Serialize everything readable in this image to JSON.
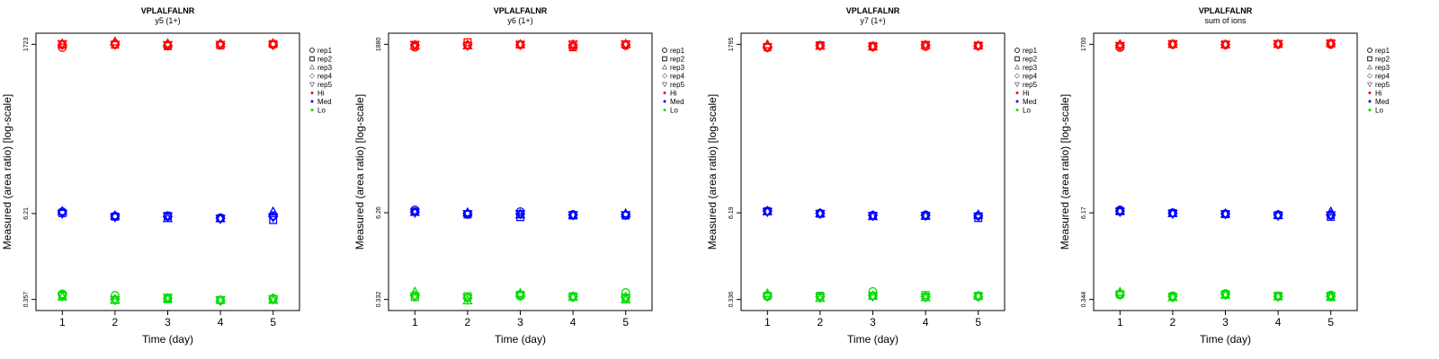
{
  "colors": {
    "Hi": "#ff0000",
    "Med": "#0000ff",
    "Lo": "#00dd00"
  },
  "legend": {
    "reps": [
      {
        "label": "rep1",
        "shape": "circle"
      },
      {
        "label": "rep2",
        "shape": "square"
      },
      {
        "label": "rep3",
        "shape": "triangle-up"
      },
      {
        "label": "rep4",
        "shape": "diamond"
      },
      {
        "label": "rep5",
        "shape": "triangle-down"
      }
    ],
    "levels": [
      "Hi",
      "Med",
      "Lo"
    ]
  },
  "chart_data": [
    {
      "type": "scatter",
      "title": "VPLALFALNR",
      "subtitle": "y5 (1+)",
      "xlabel": "Time (day)",
      "ylabel": "Measured (area ratio) [log-scale]",
      "x": [
        1,
        2,
        3,
        4,
        5
      ],
      "yticks": [
        0.357,
        6.21,
        1723
      ],
      "yticklabels": [
        "0.357",
        "6.21",
        "1723"
      ],
      "scale": "log",
      "series": [
        {
          "level": "Hi",
          "rep": "rep1",
          "values": [
            1540,
            1760,
            1650,
            1720,
            1700
          ]
        },
        {
          "level": "Hi",
          "rep": "rep2",
          "values": [
            1700,
            1700,
            1620,
            1660,
            1740
          ]
        },
        {
          "level": "Hi",
          "rep": "rep3",
          "values": [
            1760,
            1880,
            1770,
            1760,
            1780
          ]
        },
        {
          "level": "Hi",
          "rep": "rep4",
          "values": [
            1680,
            1720,
            1660,
            1740,
            1700
          ]
        },
        {
          "level": "Hi",
          "rep": "rep5",
          "values": [
            1740,
            1700,
            1690,
            1700,
            1690
          ]
        },
        {
          "level": "Med",
          "rep": "rep1",
          "values": [
            6.6,
            5.7,
            5.8,
            5.4,
            5.8
          ]
        },
        {
          "level": "Med",
          "rep": "rep2",
          "values": [
            6.3,
            5.6,
            5.7,
            5.3,
            5.0
          ]
        },
        {
          "level": "Med",
          "rep": "rep3",
          "values": [
            6.7,
            5.8,
            5.3,
            5.3,
            6.6
          ]
        },
        {
          "level": "Med",
          "rep": "rep4",
          "values": [
            6.5,
            5.7,
            5.6,
            5.3,
            5.6
          ]
        },
        {
          "level": "Med",
          "rep": "rep5",
          "values": [
            6.2,
            5.5,
            5.7,
            5.2,
            5.5
          ]
        },
        {
          "level": "Lo",
          "rep": "rep1",
          "values": [
            0.43,
            0.41,
            0.37,
            0.35,
            0.37
          ]
        },
        {
          "level": "Lo",
          "rep": "rep2",
          "values": [
            0.41,
            0.35,
            0.36,
            0.35,
            0.36
          ]
        },
        {
          "level": "Lo",
          "rep": "rep3",
          "values": [
            0.39,
            0.35,
            0.37,
            0.35,
            0.35
          ]
        },
        {
          "level": "Lo",
          "rep": "rep4",
          "values": [
            0.42,
            0.36,
            0.37,
            0.34,
            0.37
          ]
        },
        {
          "level": "Lo",
          "rep": "rep5",
          "values": [
            0.4,
            0.35,
            0.38,
            0.35,
            0.36
          ]
        }
      ]
    },
    {
      "type": "scatter",
      "title": "VPLALFALNR",
      "subtitle": "y6 (1+)",
      "xlabel": "Time (day)",
      "ylabel": "Measured (area ratio) [log-scale]",
      "x": [
        1,
        2,
        3,
        4,
        5
      ],
      "yticks": [
        0.332,
        6.26,
        1880
      ],
      "yticklabels": [
        "0.332",
        "6.26",
        "1880"
      ],
      "scale": "log",
      "series": [
        {
          "level": "Hi",
          "rep": "rep1",
          "values": [
            1700,
            1820,
            1860,
            1760,
            1800
          ]
        },
        {
          "level": "Hi",
          "rep": "rep2",
          "values": [
            1780,
            2020,
            1860,
            1700,
            1880
          ]
        },
        {
          "level": "Hi",
          "rep": "rep3",
          "values": [
            1800,
            1800,
            1880,
            1860,
            1900
          ]
        },
        {
          "level": "Hi",
          "rep": "rep4",
          "values": [
            1840,
            1860,
            1840,
            1840,
            1860
          ]
        },
        {
          "level": "Hi",
          "rep": "rep5",
          "values": [
            1860,
            1780,
            1860,
            1880,
            1880
          ]
        },
        {
          "level": "Med",
          "rep": "rep1",
          "values": [
            6.9,
            6.0,
            6.5,
            5.9,
            5.8
          ]
        },
        {
          "level": "Med",
          "rep": "rep2",
          "values": [
            6.5,
            5.9,
            5.4,
            5.7,
            5.7
          ]
        },
        {
          "level": "Med",
          "rep": "rep3",
          "values": [
            6.4,
            6.3,
            5.9,
            5.8,
            6.1
          ]
        },
        {
          "level": "Med",
          "rep": "rep4",
          "values": [
            6.4,
            6.1,
            6.0,
            5.8,
            5.9
          ]
        },
        {
          "level": "Med",
          "rep": "rep5",
          "values": [
            6.3,
            6.0,
            6.0,
            5.8,
            5.8
          ]
        },
        {
          "level": "Lo",
          "rep": "rep1",
          "values": [
            0.36,
            0.35,
            0.37,
            0.36,
            0.42
          ]
        },
        {
          "level": "Lo",
          "rep": "rep2",
          "values": [
            0.36,
            0.37,
            0.39,
            0.37,
            0.35
          ]
        },
        {
          "level": "Lo",
          "rep": "rep3",
          "values": [
            0.43,
            0.32,
            0.41,
            0.36,
            0.33
          ]
        },
        {
          "level": "Lo",
          "rep": "rep4",
          "values": [
            0.38,
            0.35,
            0.39,
            0.37,
            0.36
          ]
        },
        {
          "level": "Lo",
          "rep": "rep5",
          "values": [
            0.37,
            0.35,
            0.38,
            0.36,
            0.35
          ]
        }
      ]
    },
    {
      "type": "scatter",
      "title": "VPLALFALNR",
      "subtitle": "y7 (1+)",
      "xlabel": "Time (day)",
      "ylabel": "Measured (area ratio) [log-scale]",
      "x": [
        1,
        2,
        3,
        4,
        5
      ],
      "yticks": [
        0.336,
        6.19,
        1795
      ],
      "yticklabels": [
        "0.336",
        "6.19",
        "1795"
      ],
      "scale": "log",
      "series": [
        {
          "level": "Hi",
          "rep": "rep1",
          "values": [
            1600,
            1720,
            1640,
            1660,
            1700
          ]
        },
        {
          "level": "Hi",
          "rep": "rep2",
          "values": [
            1640,
            1740,
            1700,
            1760,
            1720
          ]
        },
        {
          "level": "Hi",
          "rep": "rep3",
          "values": [
            1780,
            1700,
            1660,
            1740,
            1720
          ]
        },
        {
          "level": "Hi",
          "rep": "rep4",
          "values": [
            1660,
            1720,
            1680,
            1760,
            1700
          ]
        },
        {
          "level": "Hi",
          "rep": "rep5",
          "values": [
            1620,
            1700,
            1660,
            1760,
            1700
          ]
        },
        {
          "level": "Med",
          "rep": "rep1",
          "values": [
            6.6,
            6.1,
            5.7,
            5.8,
            5.6
          ]
        },
        {
          "level": "Med",
          "rep": "rep2",
          "values": [
            6.5,
            6.0,
            5.6,
            5.6,
            5.2
          ]
        },
        {
          "level": "Med",
          "rep": "rep3",
          "values": [
            6.5,
            6.1,
            5.5,
            5.6,
            5.8
          ]
        },
        {
          "level": "Med",
          "rep": "rep4",
          "values": [
            6.6,
            6.1,
            5.7,
            5.7,
            5.6
          ]
        },
        {
          "level": "Med",
          "rep": "rep5",
          "values": [
            6.4,
            6.0,
            5.6,
            5.6,
            5.5
          ]
        },
        {
          "level": "Lo",
          "rep": "rep1",
          "values": [
            0.37,
            0.37,
            0.44,
            0.37,
            0.37
          ]
        },
        {
          "level": "Lo",
          "rep": "rep2",
          "values": [
            0.38,
            0.38,
            0.38,
            0.39,
            0.38
          ]
        },
        {
          "level": "Lo",
          "rep": "rep3",
          "values": [
            0.41,
            0.35,
            0.38,
            0.36,
            0.38
          ]
        },
        {
          "level": "Lo",
          "rep": "rep4",
          "values": [
            0.38,
            0.37,
            0.38,
            0.37,
            0.37
          ]
        },
        {
          "level": "Lo",
          "rep": "rep5",
          "values": [
            0.37,
            0.36,
            0.37,
            0.36,
            0.37
          ]
        }
      ]
    },
    {
      "type": "scatter",
      "title": "VPLALFALNR",
      "subtitle": "sum of ions",
      "xlabel": "Time (day)",
      "ylabel": "Measured (area ratio) [log-scale]",
      "x": [
        1,
        2,
        3,
        4,
        5
      ],
      "yticks": [
        0.344,
        6.17,
        1700
      ],
      "yticklabels": [
        "0.344",
        "6.17",
        "1700"
      ],
      "scale": "log",
      "series": [
        {
          "level": "Hi",
          "rep": "rep1",
          "values": [
            1520,
            1680,
            1660,
            1700,
            1680
          ]
        },
        {
          "level": "Hi",
          "rep": "rep2",
          "values": [
            1600,
            1720,
            1690,
            1720,
            1760
          ]
        },
        {
          "level": "Hi",
          "rep": "rep3",
          "values": [
            1700,
            1720,
            1700,
            1720,
            1760
          ]
        },
        {
          "level": "Hi",
          "rep": "rep4",
          "values": [
            1640,
            1700,
            1680,
            1700,
            1720
          ]
        },
        {
          "level": "Hi",
          "rep": "rep5",
          "values": [
            1620,
            1700,
            1680,
            1720,
            1740
          ]
        },
        {
          "level": "Med",
          "rep": "rep1",
          "values": [
            6.8,
            6.2,
            6.0,
            5.8,
            5.7
          ]
        },
        {
          "level": "Med",
          "rep": "rep2",
          "values": [
            6.5,
            6.1,
            5.9,
            5.7,
            5.4
          ]
        },
        {
          "level": "Med",
          "rep": "rep3",
          "values": [
            6.6,
            6.1,
            6.0,
            5.7,
            6.4
          ]
        },
        {
          "level": "Med",
          "rep": "rep4",
          "values": [
            6.5,
            6.1,
            6.0,
            5.8,
            5.8
          ]
        },
        {
          "level": "Med",
          "rep": "rep5",
          "values": [
            6.4,
            6.0,
            5.9,
            5.6,
            5.7
          ]
        },
        {
          "level": "Lo",
          "rep": "rep1",
          "values": [
            0.4,
            0.39,
            0.42,
            0.38,
            0.4
          ]
        },
        {
          "level": "Lo",
          "rep": "rep2",
          "values": [
            0.41,
            0.38,
            0.41,
            0.39,
            0.39
          ]
        },
        {
          "level": "Lo",
          "rep": "rep3",
          "values": [
            0.44,
            0.37,
            0.4,
            0.38,
            0.37
          ]
        },
        {
          "level": "Lo",
          "rep": "rep4",
          "values": [
            0.41,
            0.38,
            0.41,
            0.38,
            0.38
          ]
        },
        {
          "level": "Lo",
          "rep": "rep5",
          "values": [
            0.4,
            0.37,
            0.4,
            0.38,
            0.38
          ]
        }
      ]
    }
  ]
}
